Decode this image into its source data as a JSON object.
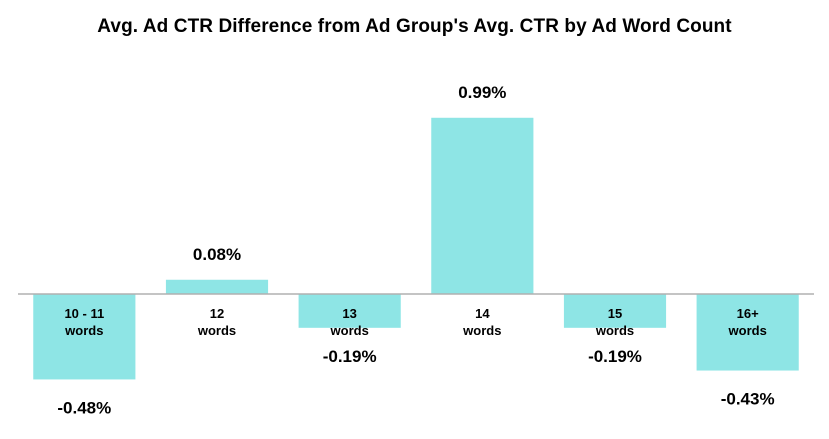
{
  "chart_data": {
    "type": "bar",
    "title": "Avg. Ad CTR Difference from Ad Group's Avg. CTR by Ad Word Count",
    "xlabel": "",
    "ylabel": "",
    "categories": [
      [
        "10 - 11",
        "words"
      ],
      [
        "12",
        "words"
      ],
      [
        "13",
        "words"
      ],
      [
        "14",
        "words"
      ],
      [
        "15",
        "words"
      ],
      [
        "16+",
        "words"
      ]
    ],
    "values": [
      -0.48,
      0.08,
      -0.19,
      0.99,
      -0.19,
      -0.43
    ],
    "data_labels": [
      "-0.48%",
      "0.08%",
      "-0.19%",
      "0.99%",
      "-0.19%",
      "-0.43%"
    ],
    "ylim": [
      -0.6,
      1.1
    ],
    "grid": false,
    "legend": "none",
    "bar_color": "#8ee5e5",
    "axis_color": "#b0b0b0"
  }
}
